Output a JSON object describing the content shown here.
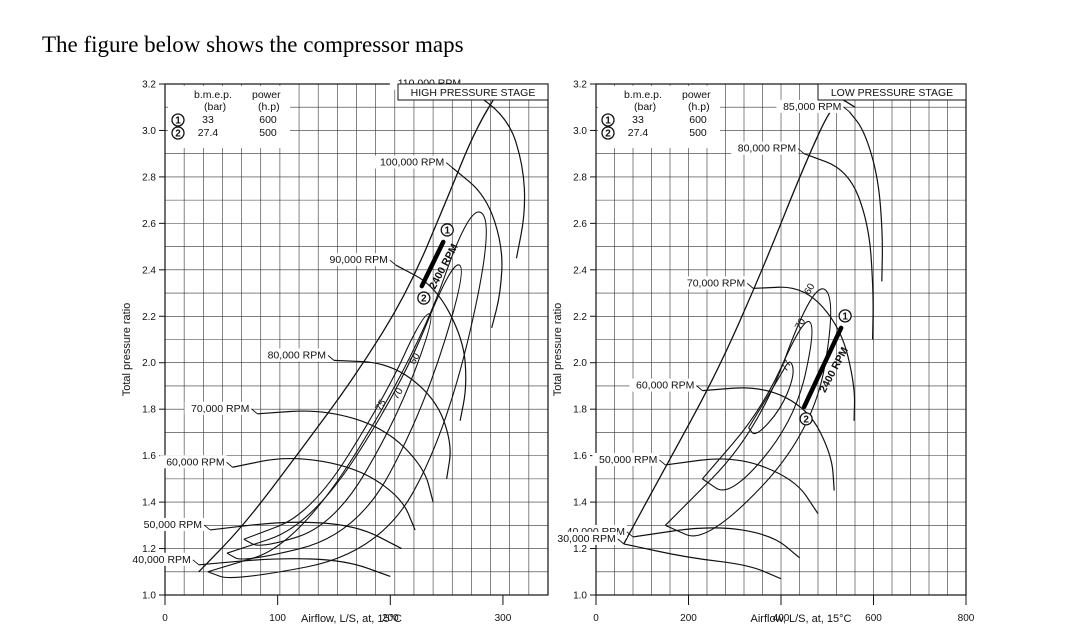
{
  "heading": "The figure below shows the compressor maps",
  "chart_data": [
    {
      "type": "line",
      "title": "HIGH PRESSURE STAGE",
      "xlabel": "Airflow, L/S, at, 15°C",
      "ylabel": "Total pressure ratio",
      "xlim": [
        0,
        340
      ],
      "ylim": [
        1.0,
        3.2
      ],
      "x_tick_labels": [
        "0",
        "100",
        "200",
        "300"
      ],
      "y_tick_labels": [
        "1.0",
        "1.2",
        "1.4",
        "1.6",
        "1.8",
        "2.0",
        "2.2",
        "2.4",
        "2.6",
        "2.8",
        "3.0",
        "3.2"
      ],
      "grid": true,
      "legend": {
        "header": [
          "b.m.e.p.",
          "power"
        ],
        "units": [
          "(bar)",
          "(h.p)"
        ],
        "rows": [
          {
            "marker": "1",
            "bmep": "33",
            "power": "600"
          },
          {
            "marker": "2",
            "bmep": "27.4",
            "power": "500"
          }
        ]
      },
      "speed_lines": [
        {
          "label": "110,000 RPM",
          "points": [
            [
              270,
              3.18
            ],
            [
              305,
              3.05
            ],
            [
              318,
              2.85
            ],
            [
              320,
              2.65
            ],
            [
              312,
              2.45
            ]
          ]
        },
        {
          "label": "100,000 RPM",
          "points": [
            [
              255,
              2.84
            ],
            [
              285,
              2.72
            ],
            [
              300,
              2.5
            ],
            [
              298,
              2.3
            ],
            [
              290,
              2.15
            ]
          ]
        },
        {
          "label": "90,000 RPM",
          "points": [
            [
              205,
              2.42
            ],
            [
              240,
              2.33
            ],
            [
              265,
              2.1
            ],
            [
              268,
              1.9
            ],
            [
              262,
              1.75
            ]
          ]
        },
        {
          "label": "80,000 RPM",
          "points": [
            [
              150,
              2.01
            ],
            [
              200,
              2.0
            ],
            [
              240,
              1.85
            ],
            [
              255,
              1.65
            ],
            [
              250,
              1.5
            ]
          ]
        },
        {
          "label": "70,000 RPM",
          "points": [
            [
              82,
              1.78
            ],
            [
              140,
              1.8
            ],
            [
              195,
              1.72
            ],
            [
              230,
              1.55
            ],
            [
              238,
              1.4
            ]
          ]
        },
        {
          "label": "60,000 RPM",
          "points": [
            [
              60,
              1.55
            ],
            [
              110,
              1.6
            ],
            [
              170,
              1.55
            ],
            [
              210,
              1.42
            ],
            [
              222,
              1.28
            ]
          ]
        },
        {
          "label": "50,000 RPM",
          "points": [
            [
              40,
              1.28
            ],
            [
              110,
              1.32
            ],
            [
              170,
              1.3
            ],
            [
              210,
              1.2
            ]
          ]
        },
        {
          "label": "40,000 RPM",
          "points": [
            [
              30,
              1.13
            ],
            [
              100,
              1.16
            ],
            [
              160,
              1.15
            ],
            [
              200,
              1.08
            ]
          ]
        }
      ],
      "efficiency_islands": [
        {
          "label": "75",
          "points": [
            [
              70,
              1.24
            ],
            [
              130,
              1.35
            ],
            [
              195,
              1.85
            ],
            [
              230,
              2.22
            ],
            [
              240,
              2.2
            ],
            [
              205,
              1.75
            ],
            [
              150,
              1.3
            ],
            [
              85,
              1.2
            ],
            [
              70,
              1.24
            ]
          ]
        },
        {
          "label": "70",
          "points": [
            [
              55,
              1.18
            ],
            [
              130,
              1.3
            ],
            [
              210,
              1.9
            ],
            [
              255,
              2.44
            ],
            [
              268,
              2.4
            ],
            [
              228,
              1.78
            ],
            [
              170,
              1.26
            ],
            [
              70,
              1.14
            ],
            [
              55,
              1.18
            ]
          ]
        },
        {
          "label": "60",
          "points": [
            [
              38,
              1.1
            ],
            [
              120,
              1.22
            ],
            [
              225,
              2.05
            ],
            [
              272,
              2.7
            ],
            [
              292,
              2.58
            ],
            [
              250,
              1.7
            ],
            [
              190,
              1.18
            ],
            [
              60,
              1.06
            ],
            [
              38,
              1.1
            ]
          ]
        }
      ],
      "surge_line": [
        [
          30,
          1.1
        ],
        [
          70,
          1.3
        ],
        [
          120,
          1.62
        ],
        [
          170,
          1.95
        ],
        [
          215,
          2.3
        ],
        [
          250,
          2.7
        ],
        [
          275,
          3.0
        ],
        [
          300,
          3.2
        ]
      ],
      "operating_line": {
        "label": "2400 RPM",
        "points": [
          [
            228,
            2.33
          ],
          [
            247,
            2.52
          ]
        ],
        "end_markers": [
          "1",
          "2"
        ]
      }
    },
    {
      "type": "line",
      "title": "LOW PRESSURE STAGE",
      "xlabel": "Airflow, L/S, at, 15°C",
      "ylabel": "Total pressure ratio",
      "xlim": [
        0,
        800
      ],
      "ylim": [
        1.0,
        3.2
      ],
      "x_tick_labels": [
        "0",
        "200",
        "400",
        "600",
        "800"
      ],
      "y_tick_labels": [
        "1.0",
        "1.2",
        "1.4",
        "1.6",
        "1.8",
        "2.0",
        "2.2",
        "2.4",
        "2.6",
        "2.8",
        "3.0",
        "3.2"
      ],
      "grid": true,
      "legend": {
        "header": [
          "b.m.e.p.",
          "power"
        ],
        "units": [
          "(bar)",
          "(h.p)"
        ],
        "rows": [
          {
            "marker": "1",
            "bmep": "33",
            "power": "600"
          },
          {
            "marker": "2",
            "bmep": "27.4",
            "power": "500"
          }
        ]
      },
      "speed_lines": [
        {
          "label": "85,000 RPM",
          "points": [
            [
              548,
              3.08
            ],
            [
              580,
              3.0
            ],
            [
              610,
              2.8
            ],
            [
              620,
              2.55
            ],
            [
              618,
              2.35
            ]
          ]
        },
        {
          "label": "80,000 RPM",
          "points": [
            [
              450,
              2.9
            ],
            [
              545,
              2.83
            ],
            [
              590,
              2.6
            ],
            [
              600,
              2.3
            ],
            [
              598,
              2.1
            ]
          ]
        },
        {
          "label": "70,000 RPM",
          "points": [
            [
              340,
              2.32
            ],
            [
              450,
              2.33
            ],
            [
              530,
              2.15
            ],
            [
              560,
              1.9
            ],
            [
              558,
              1.75
            ]
          ]
        },
        {
          "label": "60,000 RPM",
          "points": [
            [
              230,
              1.88
            ],
            [
              360,
              1.9
            ],
            [
              460,
              1.8
            ],
            [
              510,
              1.6
            ],
            [
              515,
              1.45
            ]
          ]
        },
        {
          "label": "50,000 RPM",
          "points": [
            [
              150,
              1.56
            ],
            [
              300,
              1.6
            ],
            [
              430,
              1.5
            ],
            [
              480,
              1.35
            ]
          ]
        },
        {
          "label": "40,000 RPM",
          "points": [
            [
              80,
              1.25
            ],
            [
              250,
              1.3
            ],
            [
              380,
              1.26
            ],
            [
              440,
              1.16
            ]
          ]
        },
        {
          "label": "30,000 RPM",
          "points": [
            [
              60,
              1.22
            ],
            [
              200,
              1.16
            ],
            [
              330,
              1.13
            ],
            [
              400,
              1.07
            ]
          ]
        }
      ],
      "efficiency_islands": [
        {
          "label": "77",
          "points": [
            [
              330,
              1.72
            ],
            [
              400,
              1.95
            ],
            [
              420,
              2.02
            ],
            [
              430,
              1.95
            ],
            [
              400,
              1.8
            ],
            [
              345,
              1.68
            ],
            [
              330,
              1.72
            ]
          ]
        },
        {
          "label": "70",
          "points": [
            [
              230,
              1.5
            ],
            [
              360,
              1.8
            ],
            [
              450,
              2.2
            ],
            [
              475,
              2.15
            ],
            [
              430,
              1.75
            ],
            [
              290,
              1.42
            ],
            [
              230,
              1.5
            ]
          ]
        },
        {
          "label": "60",
          "points": [
            [
              150,
              1.3
            ],
            [
              350,
              1.7
            ],
            [
              470,
              2.35
            ],
            [
              520,
              2.28
            ],
            [
              470,
              1.7
            ],
            [
              240,
              1.22
            ],
            [
              150,
              1.3
            ]
          ]
        }
      ],
      "surge_line": [
        [
          60,
          1.22
        ],
        [
          150,
          1.55
        ],
        [
          260,
          1.95
        ],
        [
          360,
          2.4
        ],
        [
          450,
          2.85
        ],
        [
          520,
          3.15
        ],
        [
          560,
          3.1
        ]
      ],
      "operating_line": {
        "label": "2400 RPM",
        "points": [
          [
            450,
            1.81
          ],
          [
            530,
            2.15
          ]
        ],
        "end_markers": [
          "1",
          "2"
        ]
      }
    }
  ]
}
